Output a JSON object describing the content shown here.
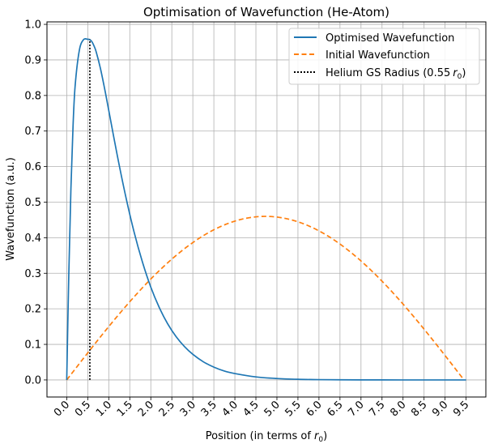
{
  "chart_data": {
    "type": "line",
    "title": "Optimisation of Wavefunction (He-Atom)",
    "xlabel_main": "Position (in terms of ",
    "xlabel_symbol": "r",
    "xlabel_sub": "0",
    "xlabel_close": ")",
    "ylabel": "Wavefunction (a.u.)",
    "xlim": [
      -0.47,
      9.97
    ],
    "ylim": [
      -0.048,
      1.007
    ],
    "x_ticks": [
      "0.0",
      "0.5",
      "1.0",
      "1.5",
      "2.0",
      "2.5",
      "3.0",
      "3.5",
      "4.0",
      "4.5",
      "5.0",
      "5.5",
      "6.0",
      "6.5",
      "7.0",
      "7.5",
      "8.0",
      "8.5",
      "9.0",
      "9.5"
    ],
    "y_ticks": [
      "0.0",
      "0.1",
      "0.2",
      "0.3",
      "0.4",
      "0.5",
      "0.6",
      "0.7",
      "0.8",
      "0.9",
      "1.0"
    ],
    "grid": true,
    "legend_position": "top-right",
    "series": [
      {
        "name": "Optimised Wavefunction",
        "style": "solid",
        "color": "#1f77b4",
        "x": [
          0.0,
          0.05,
          0.1,
          0.15,
          0.2,
          0.3,
          0.4,
          0.5,
          0.55,
          0.6,
          0.65,
          0.7,
          0.8,
          0.9,
          1.0,
          1.2,
          1.4,
          1.6,
          1.8,
          2.0,
          2.2,
          2.4,
          2.6,
          2.8,
          3.0,
          3.25,
          3.5,
          3.75,
          4.0,
          4.5,
          5.0,
          5.5,
          6.0,
          6.5,
          7.0,
          7.5,
          8.0,
          8.5,
          9.0,
          9.5
        ],
        "values": [
          0.0,
          0.301,
          0.539,
          0.713,
          0.827,
          0.927,
          0.957,
          0.958,
          0.957,
          0.951,
          0.939,
          0.923,
          0.877,
          0.82,
          0.758,
          0.633,
          0.518,
          0.417,
          0.332,
          0.261,
          0.204,
          0.158,
          0.122,
          0.094,
          0.072,
          0.051,
          0.036,
          0.025,
          0.018,
          0.0085,
          0.004,
          0.0018,
          0.0008,
          0.0004,
          0.0002,
          0.0001,
          0.0,
          0.0,
          0.0,
          0.0
        ]
      },
      {
        "name": "Initial Wavefunction",
        "style": "dashed",
        "color": "#ff7f0e",
        "x_start": 0.0,
        "x_end": 9.45,
        "amplitude": 0.46,
        "shape": "half-sine"
      },
      {
        "name": "Helium GS Radius (0.55 r0)",
        "legend_label_prefix": "Helium GS Radius (",
        "legend_label_value": "0.55",
        "legend_label_symbol": "r",
        "legend_label_sub": "0",
        "legend_label_suffix": ")",
        "style": "dotted",
        "color": "#000000",
        "x": 0.55,
        "y_from": 0.0,
        "y_to": 0.958
      }
    ]
  }
}
